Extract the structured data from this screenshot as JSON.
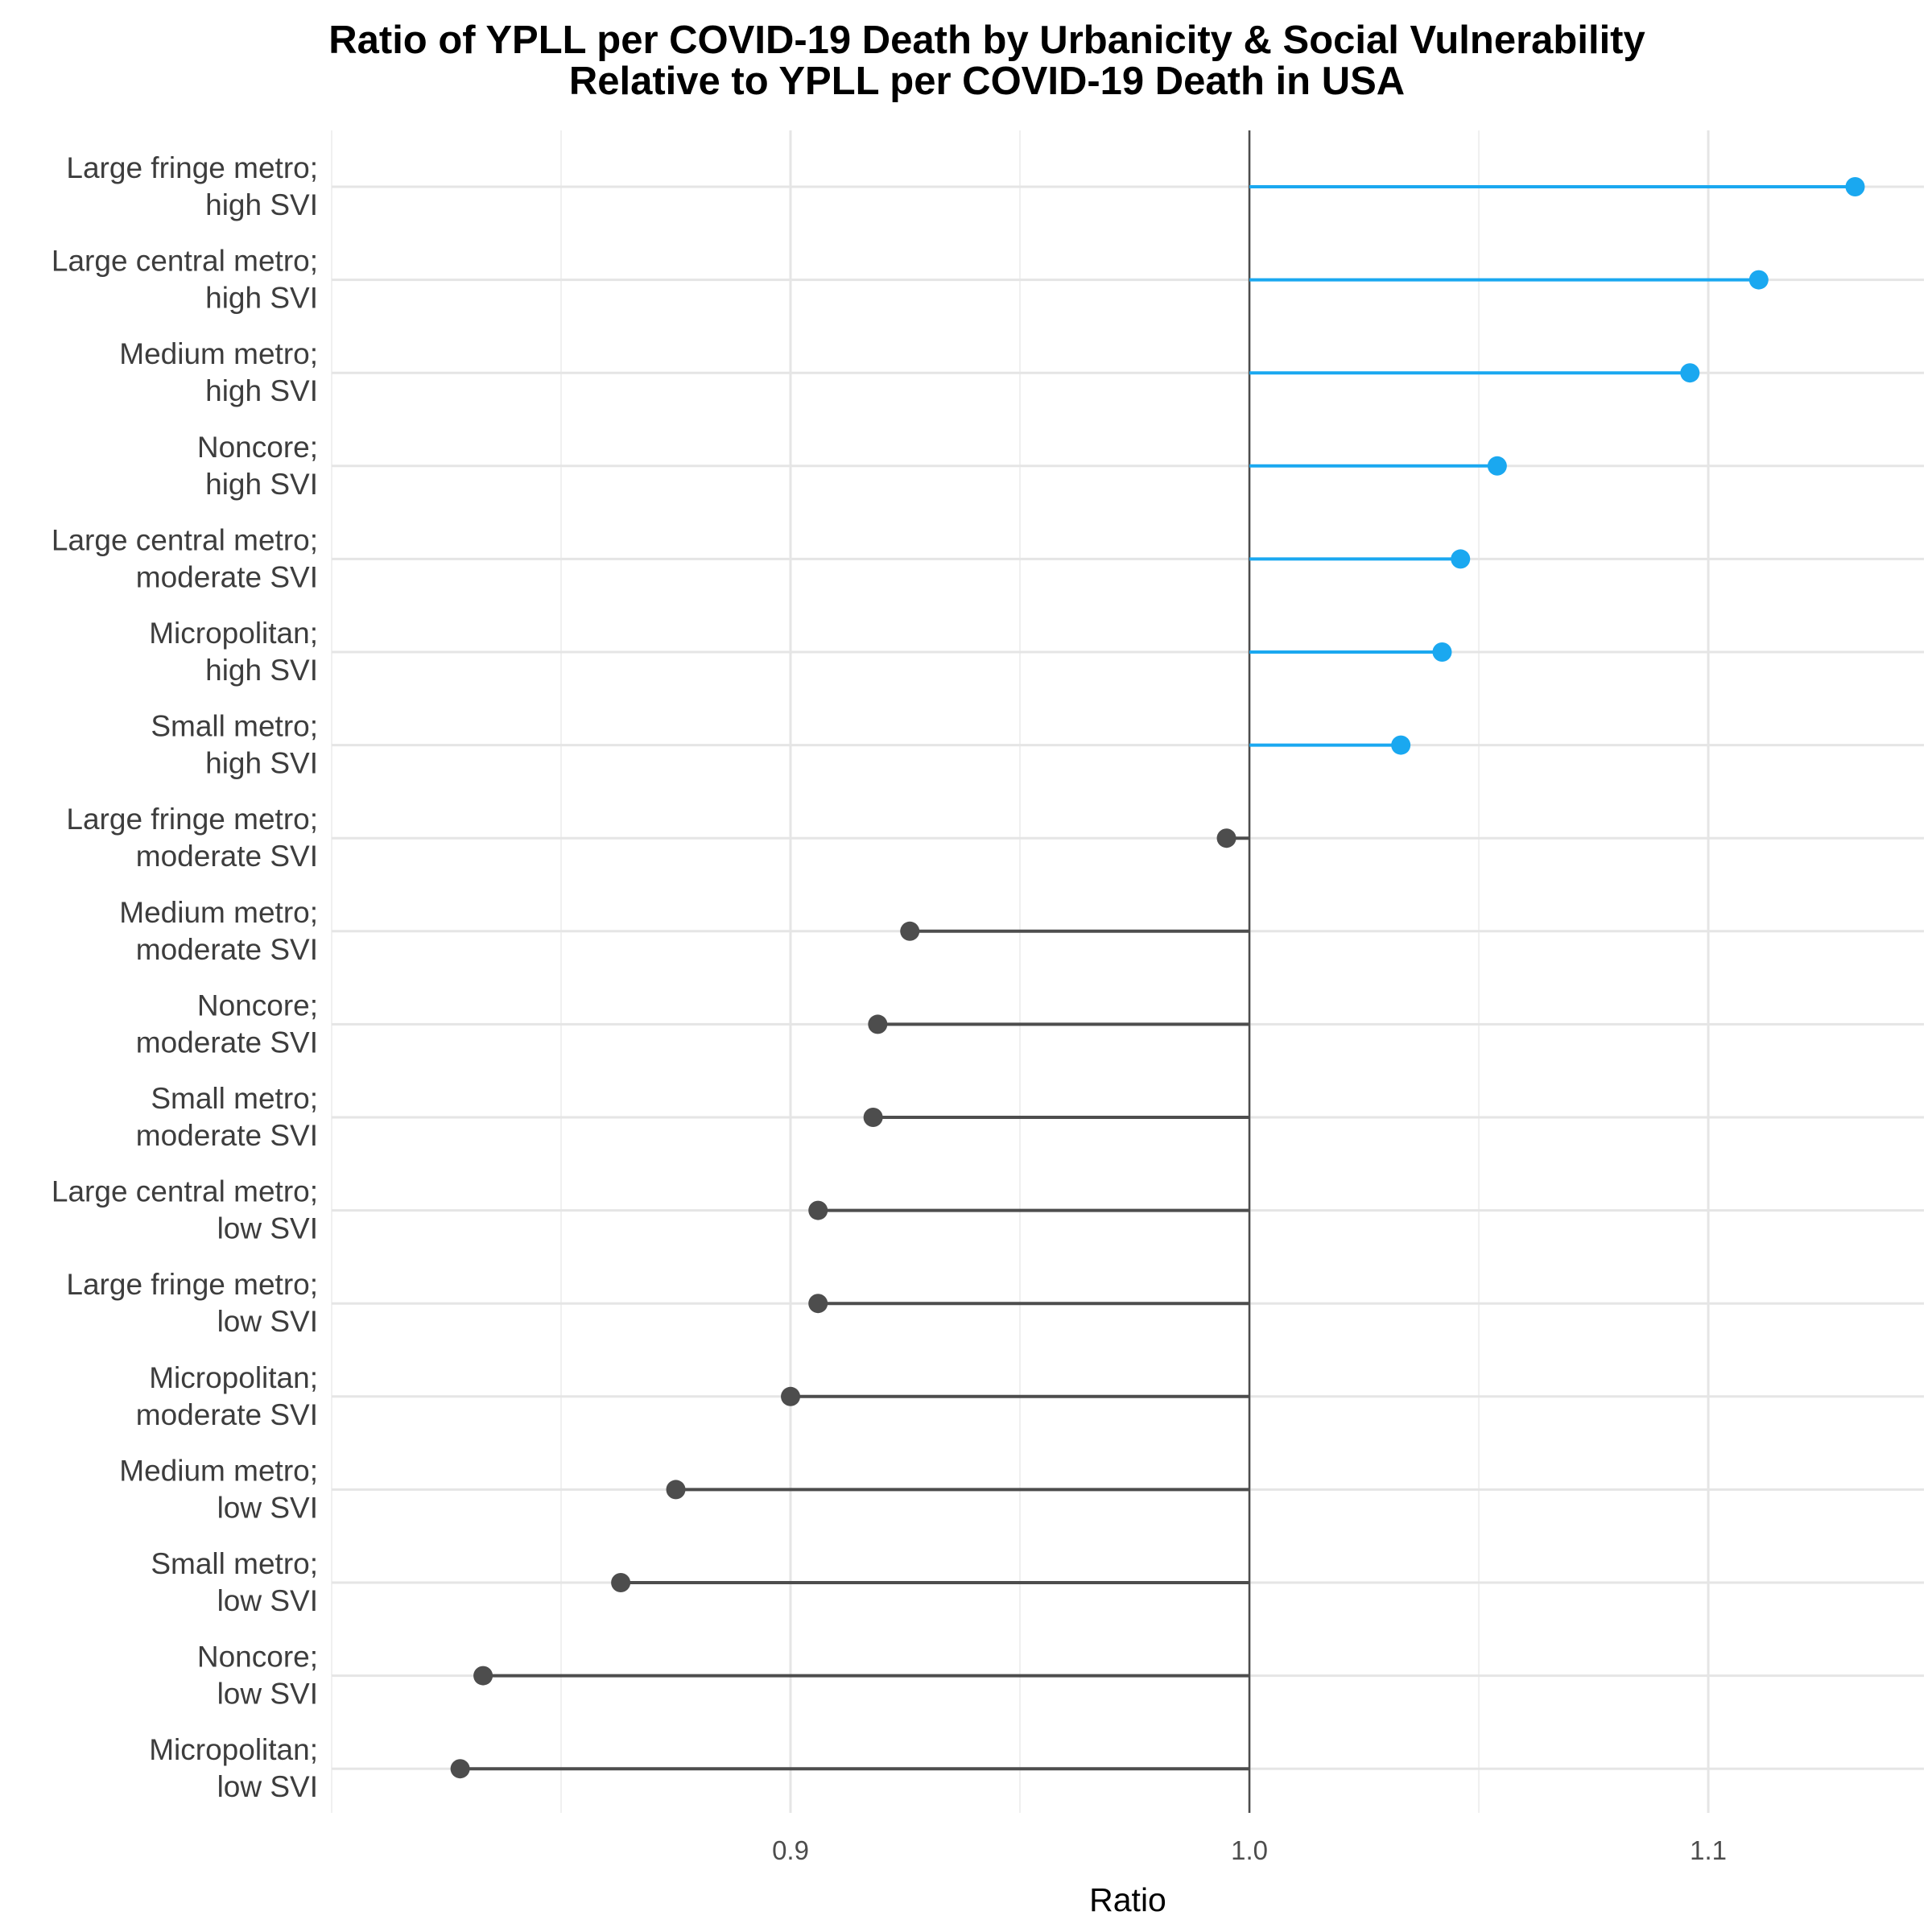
{
  "chart_data": {
    "type": "lollipop",
    "title_lines": [
      "Ratio of YPLL per COVID-19 Death by Urbanicity & Social Vulnerability",
      "Relative to YPLL per COVID-19 Death in USA"
    ],
    "xlabel": "Ratio",
    "ylabel": "",
    "xlim": [
      0.8,
      1.147
    ],
    "x_ticks": [
      0.9,
      1.0,
      1.1
    ],
    "x_tick_labels": [
      "0.9",
      "1.0",
      "1.1"
    ],
    "reference_value": 1.0,
    "grid": true,
    "colors": {
      "above_reference": "#1aa8f0",
      "below_reference": "#4d4d4d",
      "reference_line": "#4d4d4d",
      "grid_major": "#e5e5e5",
      "grid_minor": "#f0f0f0"
    },
    "categories": [
      [
        "Large fringe metro;",
        "high SVI"
      ],
      [
        "Large central metro;",
        "high SVI"
      ],
      [
        "Medium metro;",
        "high SVI"
      ],
      [
        "Noncore;",
        "high SVI"
      ],
      [
        "Large central metro;",
        "moderate SVI"
      ],
      [
        "Micropolitan;",
        "high SVI"
      ],
      [
        "Small metro;",
        "high SVI"
      ],
      [
        "Large fringe metro;",
        "moderate SVI"
      ],
      [
        "Medium metro;",
        "moderate SVI"
      ],
      [
        "Noncore;",
        "moderate SVI"
      ],
      [
        "Small metro;",
        "moderate SVI"
      ],
      [
        "Large central metro;",
        "low SVI"
      ],
      [
        "Large fringe metro;",
        "low SVI"
      ],
      [
        "Micropolitan;",
        "moderate SVI"
      ],
      [
        "Medium metro;",
        "low SVI"
      ],
      [
        "Small metro;",
        "low SVI"
      ],
      [
        "Noncore;",
        "low SVI"
      ],
      [
        "Micropolitan;",
        "low SVI"
      ]
    ],
    "values": [
      1.132,
      1.111,
      1.096,
      1.054,
      1.046,
      1.042,
      1.033,
      0.995,
      0.926,
      0.919,
      0.918,
      0.906,
      0.906,
      0.9,
      0.875,
      0.863,
      0.833,
      0.828
    ]
  }
}
